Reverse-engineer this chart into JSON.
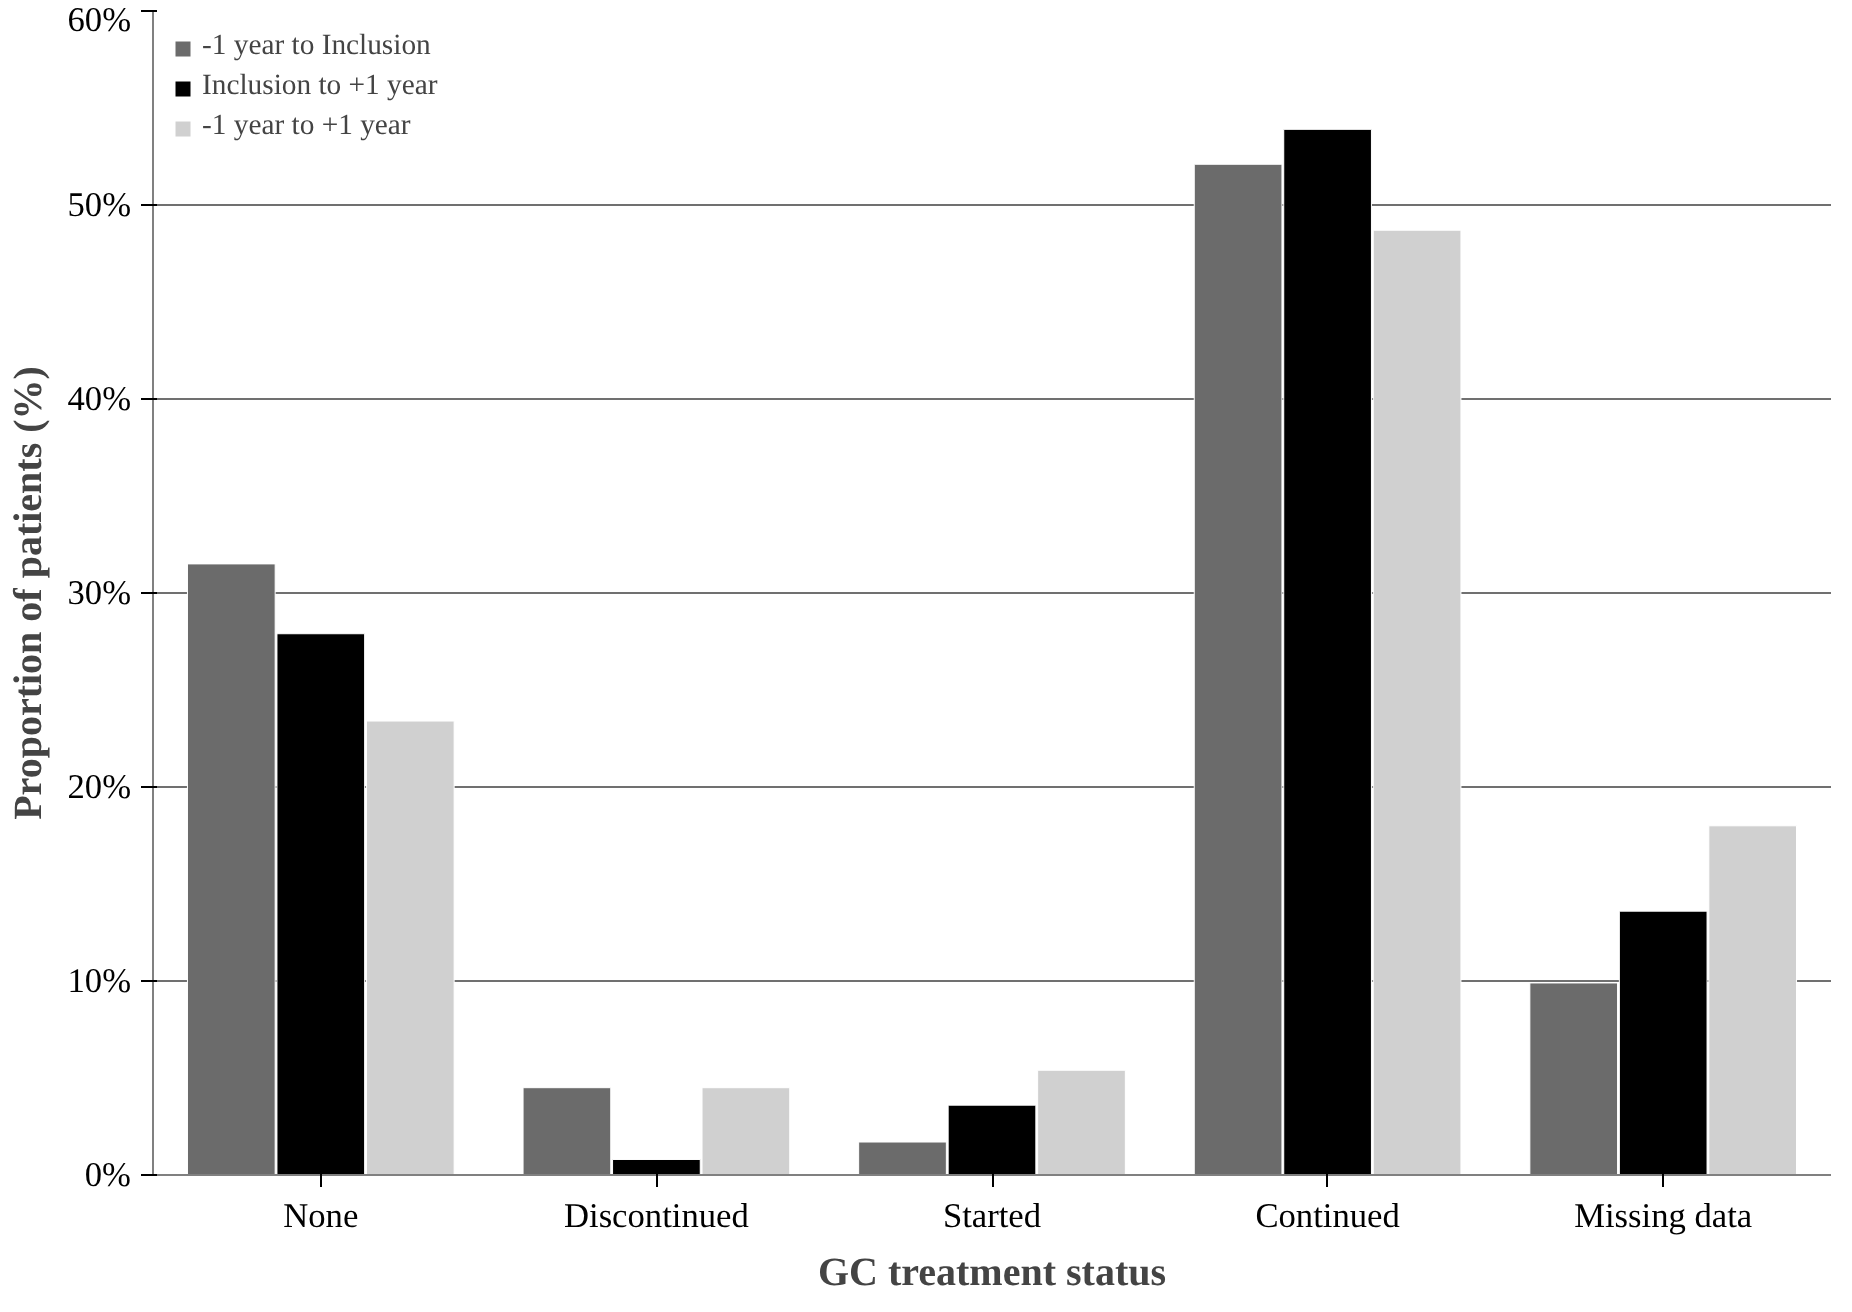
{
  "chart_data": {
    "type": "bar",
    "xlabel": "GC treatment status",
    "ylabel": "Proportion of patients (%)",
    "categories": [
      "None",
      "Discontinued",
      "Started",
      "Continued",
      "Missing data"
    ],
    "series": [
      {
        "name": "-1 year to Inclusion",
        "color": "#6b6b6b",
        "values": [
          31.5,
          4.5,
          1.7,
          52.1,
          9.9
        ]
      },
      {
        "name": "Inclusion to +1 year",
        "color": "#000000",
        "values": [
          27.9,
          0.8,
          3.6,
          53.9,
          13.6
        ]
      },
      {
        "name": "-1 year to +1 year",
        "color": "#d0d0d0",
        "values": [
          23.4,
          4.5,
          5.4,
          48.7,
          18.0
        ]
      }
    ],
    "ylim": [
      0,
      60
    ],
    "yticks": [
      {
        "value": 0,
        "label": "0%"
      },
      {
        "value": 10,
        "label": "10%"
      },
      {
        "value": 20,
        "label": "20%"
      },
      {
        "value": 30,
        "label": "30%"
      },
      {
        "value": 40,
        "label": "40%"
      },
      {
        "value": 50,
        "label": "50%"
      },
      {
        "value": 60,
        "label": "60%"
      }
    ],
    "grid": "y",
    "legend": "top left"
  }
}
